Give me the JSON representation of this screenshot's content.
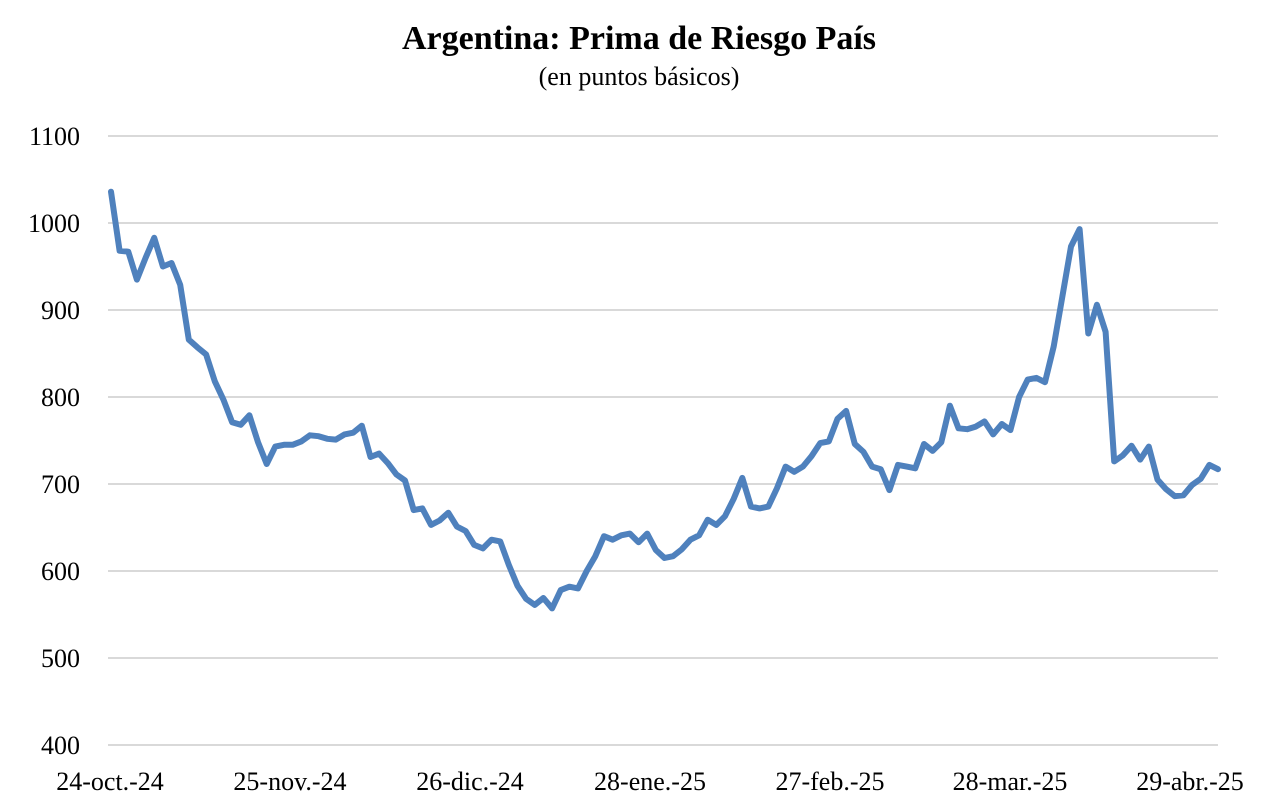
{
  "chart_data": {
    "type": "line",
    "title": "Argentina: Prima de Riesgo País",
    "subtitle": "(en puntos básicos)",
    "xlabel": "",
    "ylabel": "",
    "ylim": [
      400,
      1100
    ],
    "yticks": [
      "1100",
      "1000",
      "900",
      "800",
      "700",
      "600",
      "500",
      "400"
    ],
    "xtick_labels": [
      "24-oct.-24",
      "25-nov.-24",
      "26-dic.-24",
      "28-ene.-25",
      "27-feb.-25",
      "28-mar.-25",
      "29-abr.-25"
    ],
    "grid": true,
    "legend": "none",
    "line_color": "#4f81bd",
    "series": [
      {
        "values": [
          1036,
          968,
          967,
          935,
          960,
          983,
          950,
          954,
          929,
          866,
          857,
          849,
          818,
          797,
          771,
          768,
          779,
          748,
          723,
          743,
          745,
          745,
          749,
          756,
          755,
          752,
          751,
          757,
          759,
          767,
          731,
          735,
          724,
          711,
          704,
          670,
          672,
          653,
          658,
          667,
          651,
          646,
          630,
          626,
          636,
          634,
          607,
          583,
          568,
          561,
          569,
          557,
          578,
          582,
          580,
          600,
          617,
          640,
          636,
          641,
          643,
          633,
          643,
          624,
          615,
          617,
          625,
          636,
          641,
          659,
          653,
          663,
          683,
          707,
          674,
          672,
          674,
          695,
          720,
          714,
          720,
          732,
          747,
          749,
          775,
          784,
          746,
          737,
          720,
          717,
          693,
          722,
          720,
          718,
          746,
          738,
          748,
          790,
          764,
          763,
          766,
          772,
          757,
          769,
          762,
          800,
          820,
          822,
          817,
          858,
          915,
          973,
          993,
          873,
          906,
          875,
          726,
          733,
          744,
          728,
          743,
          705,
          694,
          686,
          687,
          699,
          706,
          722,
          717
        ]
      }
    ]
  }
}
